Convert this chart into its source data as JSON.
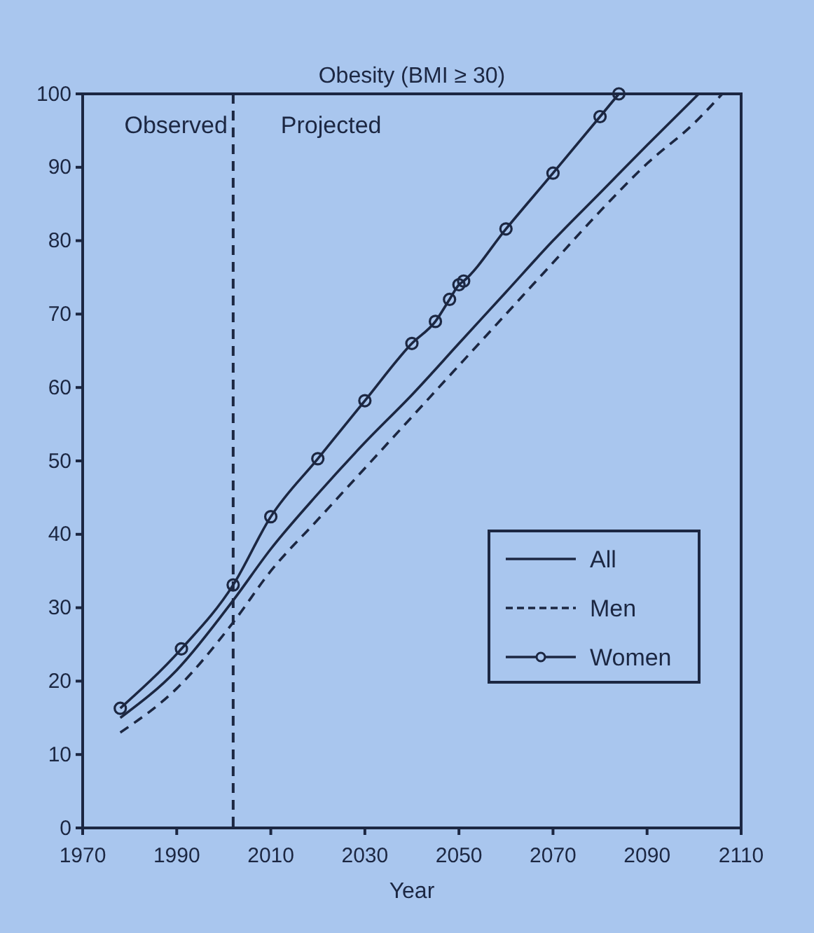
{
  "chart_data": {
    "type": "line",
    "title": "Obesity (BMI ≥ 30)",
    "xlabel": "Year",
    "xlim": [
      1970,
      2110
    ],
    "xticks": [
      1970,
      1990,
      2010,
      2030,
      2050,
      2070,
      2090,
      2110
    ],
    "ylim": [
      0,
      100
    ],
    "yticks": [
      0,
      10,
      20,
      30,
      40,
      50,
      60,
      70,
      80,
      90,
      100
    ],
    "grid": false,
    "legend": "bottom right",
    "annotations": [
      "Observed",
      "Projected"
    ],
    "ref_lines": [
      {
        "axis": "x",
        "value": 2002,
        "line_style": "dashed",
        "color": "#1c2742"
      }
    ],
    "series": [
      {
        "name": "All",
        "color": "#1c2742",
        "line_style": "solid",
        "marker": "none",
        "x": [
          1978,
          1990,
          2002,
          2010,
          2020,
          2030,
          2040,
          2050,
          2060,
          2070,
          2080,
          2090,
          2101
        ],
        "values": [
          15,
          21.5,
          31,
          38,
          45.5,
          52.5,
          59,
          66,
          73,
          80,
          86.5,
          93,
          100
        ]
      },
      {
        "name": "Men",
        "color": "#1c2742",
        "line_style": "dashed",
        "marker": "none",
        "x": [
          1978,
          1990,
          2002,
          2010,
          2020,
          2030,
          2040,
          2050,
          2060,
          2070,
          2080,
          2090,
          2100,
          2106
        ],
        "values": [
          13,
          19,
          28,
          35,
          42,
          49,
          56,
          63,
          70,
          77,
          84,
          90.5,
          96,
          100
        ]
      },
      {
        "name": "Women",
        "color": "#1c2742",
        "line_style": "solid",
        "marker": "circle",
        "x": [
          1978,
          1991,
          2002,
          2010,
          2020,
          2030,
          2040,
          2045,
          2048,
          2050,
          2051,
          2060,
          2070,
          2080,
          2084
        ],
        "values": [
          16.3,
          24.4,
          33.1,
          42.4,
          50.3,
          58.2,
          66,
          69,
          72,
          74,
          74.5,
          81.6,
          89.2,
          96.9,
          100
        ]
      }
    ]
  }
}
